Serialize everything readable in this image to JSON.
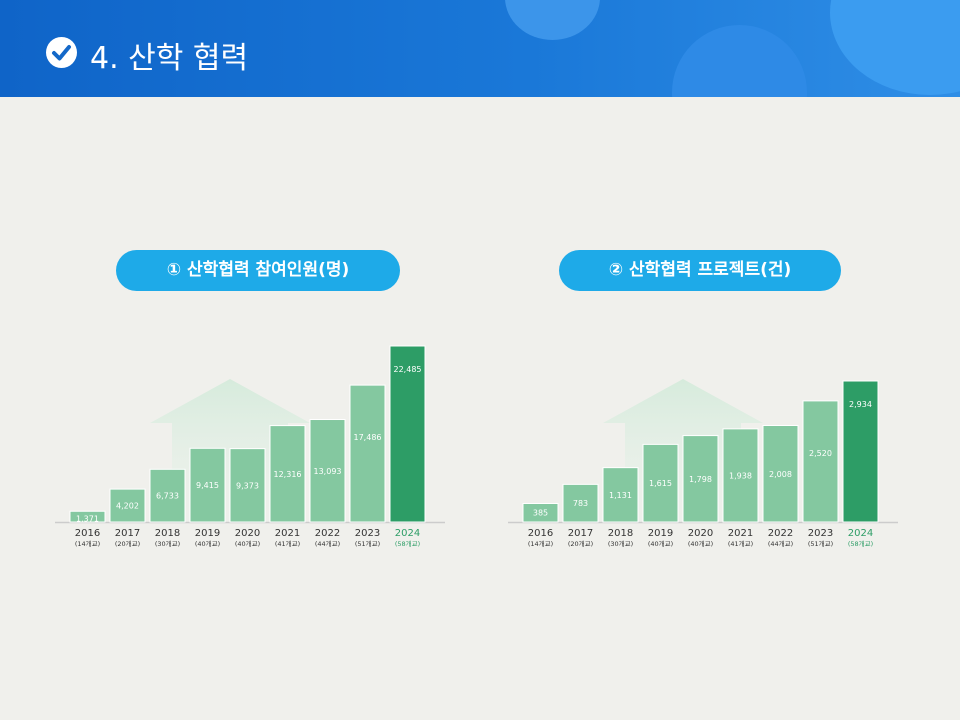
{
  "header": {
    "title": "4. 산학 협력",
    "icon": "check-circle-icon"
  },
  "colors": {
    "bar": "#84c8a0",
    "bar_highlight": "#2d9d66",
    "pill": "#1eaae8",
    "highlight_text": "#2d9d66"
  },
  "chart_data": [
    {
      "type": "bar",
      "title": "① 산학협력 참여인원(명)",
      "categories": [
        "2016",
        "2017",
        "2018",
        "2019",
        "2020",
        "2021",
        "2022",
        "2023",
        "2024"
      ],
      "sublabels": [
        "(14개교)",
        "(20개교)",
        "(30개교)",
        "(40개교)",
        "(40개교)",
        "(41개교)",
        "(44개교)",
        "(51개교)",
        "(58개교)"
      ],
      "values": [
        1371,
        4202,
        6733,
        9415,
        9373,
        12316,
        13093,
        17486,
        22485
      ],
      "value_labels": [
        "1,371",
        "4,202",
        "6,733",
        "9,415",
        "9,373",
        "12,316",
        "13,093",
        "17,486",
        "22,485"
      ],
      "highlight_index": 8
    },
    {
      "type": "bar",
      "title": "② 산학협력 프로젝트(건)",
      "categories": [
        "2016",
        "2017",
        "2018",
        "2019",
        "2020",
        "2021",
        "2022",
        "2023",
        "2024"
      ],
      "sublabels": [
        "(14개교)",
        "(20개교)",
        "(30개교)",
        "(40개교)",
        "(40개교)",
        "(41개교)",
        "(44개교)",
        "(51개교)",
        "(58개교)"
      ],
      "values": [
        385,
        783,
        1131,
        1615,
        1798,
        1938,
        2008,
        2520,
        2934
      ],
      "value_labels": [
        "385",
        "783",
        "1,131",
        "1,615",
        "1,798",
        "1,938",
        "2,008",
        "2,520",
        "2,934"
      ],
      "highlight_index": 8
    }
  ]
}
